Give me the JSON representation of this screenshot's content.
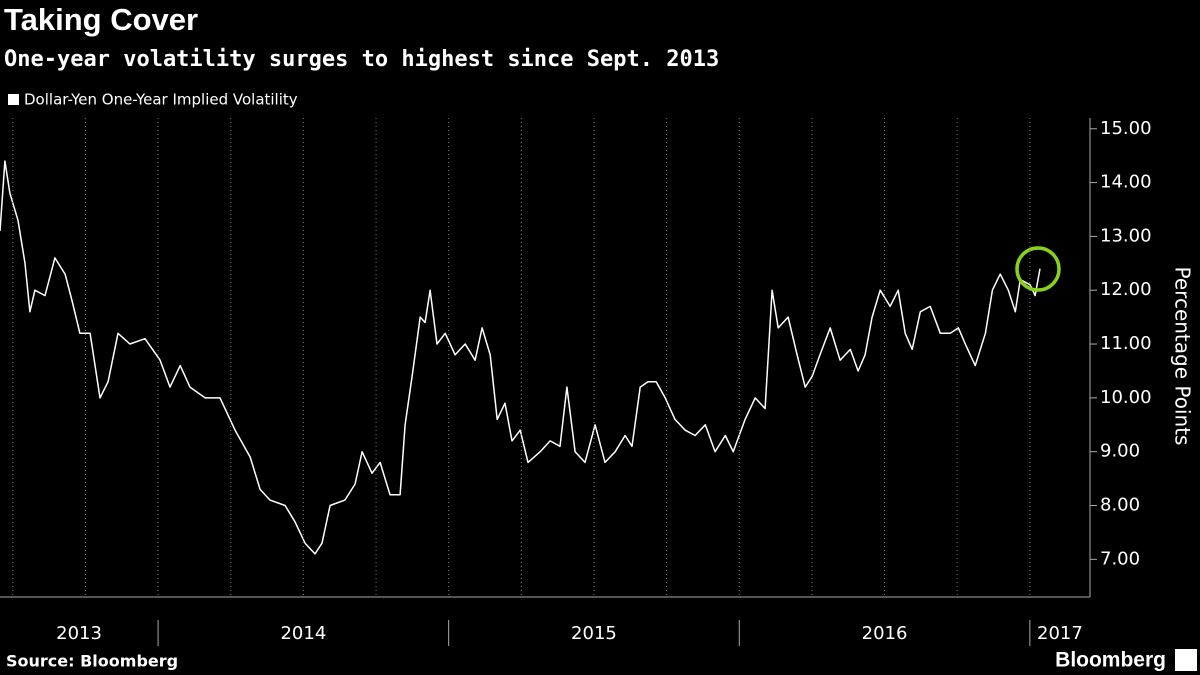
{
  "chart_data": {
    "type": "line",
    "title": "Taking Cover",
    "subtitle": "One-year volatility surges to highest since Sept. 2013",
    "y_label": "Percentage Points",
    "source": "Source: Bloomberg",
    "brand": "Bloomberg",
    "year_labels": [
      "2013",
      "2014",
      "2015",
      "2016",
      "2017"
    ],
    "xlim": [
      2013.456,
      2017.207
    ],
    "xticks": [
      2014,
      2015,
      2016,
      2017
    ],
    "ylim": [
      6.3,
      15.2
    ],
    "yticks": [
      {
        "value": 7,
        "label": "7.00"
      },
      {
        "value": 8,
        "label": "8.00"
      },
      {
        "value": 9,
        "label": "9.00"
      },
      {
        "value": 10,
        "label": "10.00"
      },
      {
        "value": 11,
        "label": "11.00"
      },
      {
        "value": 12,
        "label": "12.00"
      },
      {
        "value": 13,
        "label": "13.00"
      },
      {
        "value": 14,
        "label": "14.00"
      },
      {
        "value": 15,
        "label": "15.00"
      }
    ],
    "x": [
      2013.456,
      2013.473,
      2013.49,
      2013.518,
      2013.542,
      2013.559,
      2013.576,
      2013.611,
      2013.645,
      2013.68,
      2013.704,
      2013.731,
      2013.766,
      2013.8,
      2013.828,
      2013.862,
      2013.903,
      2013.955,
      2014.007,
      2014.041,
      2014.076,
      2014.11,
      2014.162,
      2014.213,
      2014.265,
      2014.317,
      2014.351,
      2014.385,
      2014.437,
      2014.471,
      2014.506,
      2014.54,
      2014.564,
      2014.592,
      2014.643,
      2014.678,
      2014.702,
      2014.736,
      2014.764,
      2014.798,
      2014.833,
      2014.85,
      2014.874,
      2014.902,
      2014.919,
      2014.936,
      2014.96,
      2014.988,
      2015.022,
      2015.057,
      2015.091,
      2015.115,
      2015.143,
      2015.167,
      2015.194,
      2015.218,
      2015.246,
      2015.273,
      2015.315,
      2015.349,
      2015.383,
      2015.407,
      2015.435,
      2015.469,
      2015.504,
      2015.538,
      2015.573,
      2015.607,
      2015.631,
      2015.659,
      2015.686,
      2015.714,
      2015.745,
      2015.779,
      2015.814,
      2015.848,
      2015.883,
      2015.917,
      2015.952,
      2015.979,
      2016.02,
      2016.055,
      2016.089,
      2016.113,
      2016.134,
      2016.168,
      2016.199,
      2016.227,
      2016.251,
      2016.278,
      2016.313,
      2016.347,
      2016.382,
      2016.409,
      2016.433,
      2016.457,
      2016.485,
      2016.519,
      2016.547,
      2016.571,
      2016.595,
      2016.623,
      2016.657,
      2016.692,
      2016.726,
      2016.754,
      2016.778,
      2016.812,
      2016.847,
      2016.871,
      2016.898,
      2016.926,
      2016.95,
      2016.967,
      2017.001,
      2017.018,
      2017.035
    ],
    "series": [
      {
        "name": "Dollar-Yen One-Year Implied Volatility",
        "color": "#ffffff",
        "values": [
          13.1,
          14.4,
          13.8,
          13.3,
          12.5,
          11.6,
          12.0,
          11.9,
          12.6,
          12.3,
          11.8,
          11.2,
          11.2,
          10.0,
          10.3,
          11.2,
          11.0,
          11.1,
          10.7,
          10.2,
          10.6,
          10.2,
          10.0,
          10.0,
          9.4,
          8.9,
          8.3,
          8.1,
          8.0,
          7.7,
          7.3,
          7.1,
          7.3,
          8.0,
          8.1,
          8.4,
          9.0,
          8.6,
          8.8,
          8.2,
          8.2,
          9.5,
          10.4,
          11.5,
          11.4,
          12.0,
          11.0,
          11.2,
          10.8,
          11.0,
          10.7,
          11.3,
          10.8,
          9.6,
          9.9,
          9.2,
          9.4,
          8.8,
          9.0,
          9.2,
          9.1,
          10.2,
          9.0,
          8.8,
          9.5,
          8.8,
          9.0,
          9.3,
          9.1,
          10.2,
          10.3,
          10.3,
          10.0,
          9.6,
          9.4,
          9.3,
          9.5,
          9.0,
          9.3,
          9.0,
          9.6,
          10.0,
          9.8,
          12.0,
          11.3,
          11.5,
          10.8,
          10.2,
          10.4,
          10.8,
          11.3,
          10.7,
          10.9,
          10.5,
          10.8,
          11.5,
          12.0,
          11.7,
          12.0,
          11.2,
          10.9,
          11.6,
          11.7,
          11.2,
          11.2,
          11.3,
          11.0,
          10.6,
          11.2,
          12.0,
          12.3,
          12.0,
          11.6,
          12.2,
          12.1,
          11.9,
          12.4
        ]
      }
    ]
  }
}
